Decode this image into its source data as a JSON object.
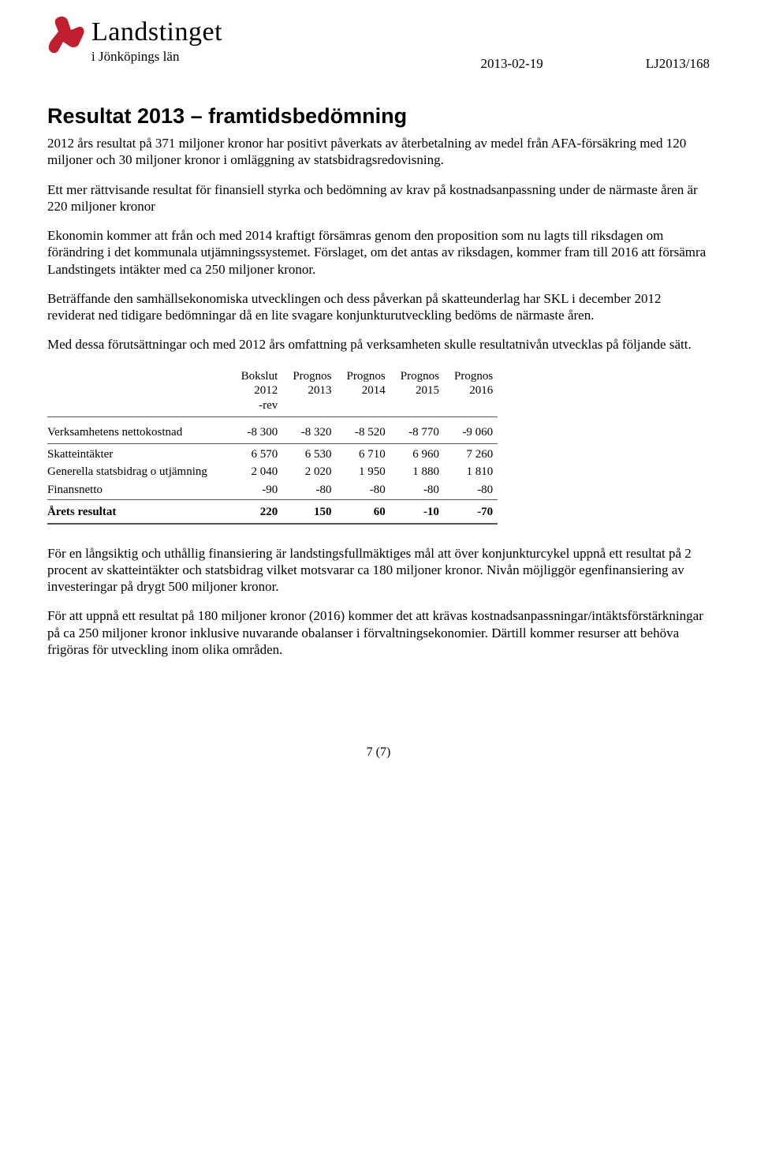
{
  "header": {
    "logo_title": "Landstinget",
    "logo_sub": "i Jönköpings län",
    "date": "2013-02-19",
    "doc_ref": "LJ2013/168",
    "logo_color": "#c11e2f"
  },
  "title": "Resultat 2013 – framtidsbedömning",
  "paragraphs": {
    "p1": "2012 års resultat på 371 miljoner kronor har positivt påverkats av återbetalning av medel från AFA-försäkring med 120 miljoner och 30 miljoner kronor i omläggning av statsbidragsredovisning.",
    "p2": "Ett mer rättvisande resultat för finansiell styrka och bedömning av krav på kostnadsanpassning under de närmaste åren är 220 miljoner kronor",
    "p3": "Ekonomin kommer att från och med 2014 kraftigt försämras genom den proposition som nu lagts till riksdagen om förändring i det kommunala utjämningssystemet. Förslaget, om det antas av riksdagen, kommer fram till 2016 att försämra Landstingets intäkter med ca 250 miljoner kronor.",
    "p4": "Beträffande den samhällsekonomiska utvecklingen och dess påverkan på skatteunderlag har SKL i december 2012 reviderat ned tidigare bedömningar då en lite svagare konjunkturutveckling bedöms de närmaste åren.",
    "p5": "Med dessa förutsättningar och med 2012 års omfattning på verksamheten skulle resultatnivån utvecklas på följande sätt.",
    "p6": "För en långsiktig och uthållig finansiering är landstingsfullmäktiges mål att över konjunkturcykel uppnå ett resultat på 2 procent av skatteintäkter och statsbidrag vilket motsvarar ca 180 miljoner kronor. Nivån  möjliggör egenfinansiering av investeringar på drygt 500 miljoner kronor.",
    "p7": "För att uppnå ett resultat på 180 miljoner kronor (2016) kommer det att krävas kostnadsanpassningar/intäktsförstärkningar på ca 250 miljoner kronor inklusive nuvarande obalanser i förvaltningsekonomier. Därtill kommer resurser att behöva frigöras för utveckling inom olika områden."
  },
  "table": {
    "columns": [
      {
        "l1": "",
        "l2": "",
        "l3": ""
      },
      {
        "l1": "Bokslut",
        "l2": "2012",
        "l3": "-rev"
      },
      {
        "l1": "Prognos",
        "l2": "2013",
        "l3": ""
      },
      {
        "l1": "Prognos",
        "l2": "2014",
        "l3": ""
      },
      {
        "l1": "Prognos",
        "l2": "2015",
        "l3": ""
      },
      {
        "l1": "Prognos",
        "l2": "2016",
        "l3": ""
      }
    ],
    "rows": [
      {
        "label": "Verksamhetens nettokostnad",
        "vals": [
          "-8 300",
          "-8 320",
          "-8 520",
          "-8 770",
          "-9 060"
        ],
        "cls": "section-top section-bottom section-top-first"
      },
      {
        "label": "Skatteintäkter",
        "vals": [
          "6 570",
          "6 530",
          "6 710",
          "6 960",
          "7 260"
        ],
        "cls": "group-gap"
      },
      {
        "label": "Generella statsbidrag o utjämning",
        "vals": [
          "2 040",
          "2 020",
          "1 950",
          "1 880",
          "1 810"
        ],
        "cls": ""
      },
      {
        "label": "Finansnetto",
        "vals": [
          "-90",
          "-80",
          "-80",
          "-80",
          "-80"
        ],
        "cls": ""
      },
      {
        "label": "Årets resultat",
        "vals": [
          "220",
          "150",
          "60",
          "-10",
          "-70"
        ],
        "cls": "bold"
      }
    ]
  },
  "page_number": "7 (7)"
}
